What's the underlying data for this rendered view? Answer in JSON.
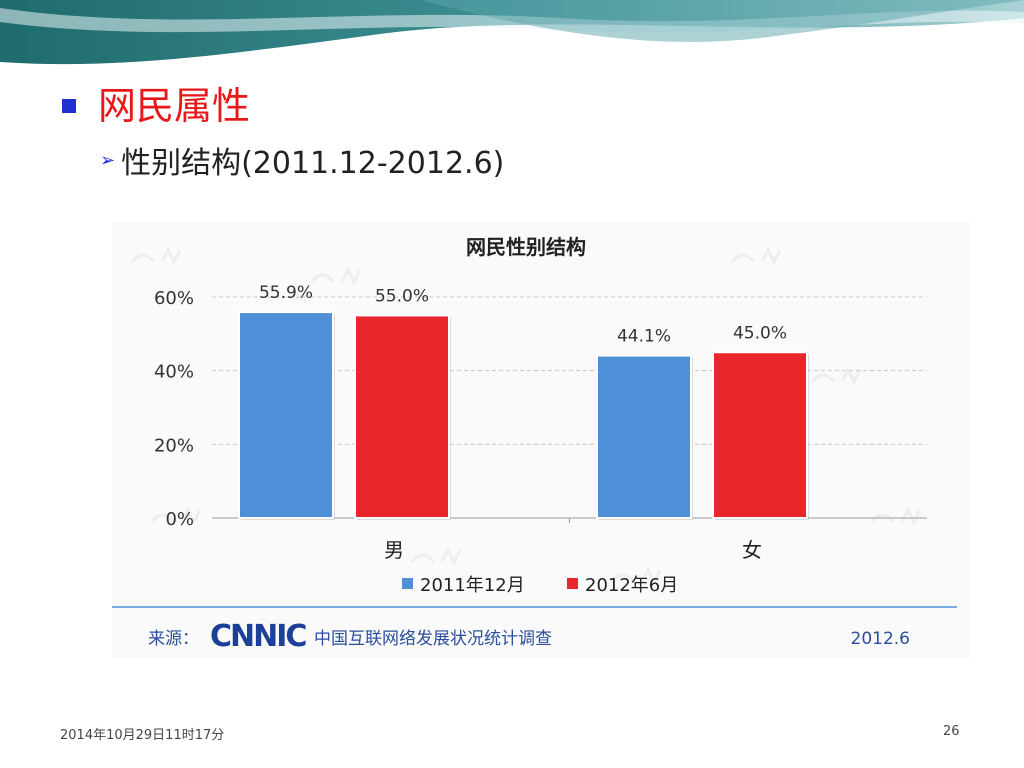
{
  "slide": {
    "heading": "网民属性",
    "subheading": "性别结构(2011.12-2012.6)",
    "arrow_icon": "arrow-right-icon",
    "footer_date": "2014年10月29日11时17分",
    "page_number": "26"
  },
  "source": {
    "label": "来源：",
    "logo": "CNNIC",
    "org": "中国互联网络发展状况统计调查",
    "date": "2012.6"
  },
  "chart_data": {
    "type": "bar",
    "title": "网民性别结构",
    "categories": [
      "男",
      "女"
    ],
    "series": [
      {
        "name": "2011年12月",
        "values": [
          55.9,
          44.1
        ],
        "labels": [
          "55.9%",
          "44.1%"
        ],
        "color": "#4f8fd8"
      },
      {
        "name": "2012年6月",
        "values": [
          55.0,
          45.0
        ],
        "labels": [
          "55.0%",
          "45.0%"
        ],
        "color": "#e8262c"
      }
    ],
    "yticks": [
      "60%",
      "40%",
      "20%",
      "0%"
    ],
    "ylim": [
      0,
      60
    ],
    "grid": true,
    "legend_position": "bottom"
  }
}
